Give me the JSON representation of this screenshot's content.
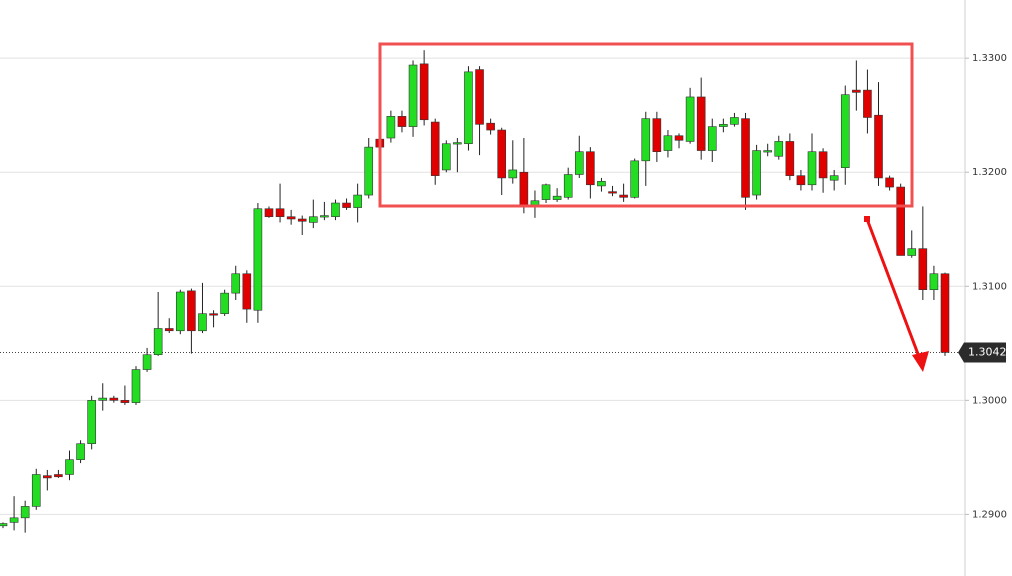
{
  "chart_data": {
    "type": "candlestick",
    "up_color": "#22dd22",
    "down_color": "#e00000",
    "grid": true,
    "ylim": [
      1.2846,
      1.3351
    ],
    "yticks": [
      {
        "value": 1.29,
        "label": "1.2900"
      },
      {
        "value": 1.3,
        "label": "1.3000"
      },
      {
        "value": 1.31,
        "label": "1.3100"
      },
      {
        "value": 1.32,
        "label": "1.3200"
      },
      {
        "value": 1.33,
        "label": "1.3300"
      }
    ],
    "current_price": {
      "value": 1.3042,
      "label": "1.3042"
    },
    "open": [
      1.289,
      1.2893,
      1.2897,
      1.2907,
      1.2934,
      1.2935,
      1.2935,
      1.2948,
      1.2962,
      1.3,
      1.3002,
      1.3,
      1.2998,
      1.3027,
      1.304,
      1.3063,
      1.3061,
      1.3096,
      1.3061,
      1.3076,
      1.3076,
      1.3094,
      1.3111,
      1.3079,
      1.3168,
      1.3168,
      1.3161,
      1.3159,
      1.3156,
      1.3161,
      1.3161,
      1.3173,
      1.3169,
      1.318,
      1.3229,
      1.323,
      1.3249,
      1.324,
      1.3295,
      1.3244,
      1.3202,
      1.3225,
      1.3225,
      1.329,
      1.3243,
      1.3237,
      1.3195,
      1.32,
      1.3171,
      1.3176,
      1.3176,
      1.3178,
      1.3198,
      1.3218,
      1.3188,
      1.3183,
      1.318,
      1.3178,
      1.321,
      1.3247,
      1.3219,
      1.3232,
      1.3227,
      1.3266,
      1.3219,
      1.324,
      1.3242,
      1.3247,
      1.318,
      1.3218,
      1.3214,
      1.3227,
      1.3197,
      1.3189,
      1.3218,
      1.3193,
      1.3204,
      1.3272,
      1.3272,
      1.325,
      1.3195,
      1.3187,
      1.3127,
      1.3133,
      1.3097,
      1.3111
    ],
    "high": [
      1.2893,
      1.2916,
      1.2912,
      1.294,
      1.2939,
      1.2939,
      1.2956,
      1.2965,
      1.3004,
      1.3015,
      1.3004,
      1.3013,
      1.303,
      1.3046,
      1.3095,
      1.3072,
      1.3097,
      1.3098,
      1.3103,
      1.3079,
      1.3097,
      1.3118,
      1.3114,
      1.3173,
      1.317,
      1.319,
      1.3167,
      1.3162,
      1.3176,
      1.3174,
      1.3176,
      1.3177,
      1.319,
      1.323,
      1.3239,
      1.3254,
      1.3254,
      1.3298,
      1.3307,
      1.3247,
      1.3228,
      1.323,
      1.3293,
      1.3293,
      1.3247,
      1.3239,
      1.3228,
      1.323,
      1.3184,
      1.319,
      1.3186,
      1.3204,
      1.3232,
      1.3222,
      1.3195,
      1.3188,
      1.319,
      1.3212,
      1.3253,
      1.3253,
      1.3237,
      1.3234,
      1.3274,
      1.3283,
      1.3247,
      1.3247,
      1.3252,
      1.3252,
      1.3224,
      1.3225,
      1.3232,
      1.3234,
      1.3202,
      1.3234,
      1.3221,
      1.3202,
      1.3276,
      1.3298,
      1.329,
      1.3279,
      1.3197,
      1.319,
      1.3149,
      1.317,
      1.3118,
      1.3112
    ],
    "low": [
      1.2888,
      1.2886,
      1.2884,
      1.2904,
      1.2921,
      1.2932,
      1.293,
      1.2945,
      1.2957,
      1.2991,
      1.2998,
      1.2996,
      1.2996,
      1.3025,
      1.3039,
      1.3059,
      1.3058,
      1.3041,
      1.3059,
      1.3064,
      1.3074,
      1.3088,
      1.3068,
      1.3068,
      1.316,
      1.3156,
      1.3154,
      1.3145,
      1.3151,
      1.3158,
      1.3158,
      1.3167,
      1.3156,
      1.3177,
      1.3219,
      1.3226,
      1.3235,
      1.3231,
      1.3241,
      1.3189,
      1.32,
      1.32,
      1.3219,
      1.3215,
      1.3233,
      1.318,
      1.319,
      1.3164,
      1.316,
      1.3173,
      1.3174,
      1.3176,
      1.3195,
      1.3177,
      1.3183,
      1.3179,
      1.3174,
      1.3177,
      1.3188,
      1.3209,
      1.3213,
      1.3221,
      1.3225,
      1.3211,
      1.3209,
      1.3235,
      1.324,
      1.3167,
      1.3176,
      1.3214,
      1.3211,
      1.3193,
      1.3184,
      1.3184,
      1.3182,
      1.3184,
      1.3189,
      1.3254,
      1.3234,
      1.3188,
      1.3184,
      1.3127,
      1.3125,
      1.3088,
      1.3088,
      1.3039
    ],
    "close": [
      1.2892,
      1.2897,
      1.2907,
      1.2935,
      1.2932,
      1.2933,
      1.2948,
      1.2962,
      1.3,
      1.3002,
      1.3,
      1.2998,
      1.3027,
      1.304,
      1.3063,
      1.3061,
      1.3095,
      1.3061,
      1.3076,
      1.3075,
      1.3094,
      1.3111,
      1.308,
      1.3168,
      1.3161,
      1.3161,
      1.3159,
      1.3157,
      1.3161,
      1.3162,
      1.3173,
      1.3169,
      1.318,
      1.3222,
      1.3222,
      1.3249,
      1.324,
      1.3294,
      1.3246,
      1.3197,
      1.3225,
      1.3226,
      1.3288,
      1.3242,
      1.3237,
      1.3195,
      1.3202,
      1.3171,
      1.3175,
      1.3189,
      1.3179,
      1.3198,
      1.3218,
      1.3189,
      1.3192,
      1.3182,
      1.3178,
      1.321,
      1.3247,
      1.3218,
      1.3232,
      1.3228,
      1.3266,
      1.3219,
      1.324,
      1.3242,
      1.3248,
      1.3178,
      1.3219,
      1.3219,
      1.3227,
      1.3197,
      1.3189,
      1.3218,
      1.3195,
      1.3197,
      1.3268,
      1.327,
      1.3248,
      1.3195,
      1.3187,
      1.3127,
      1.3133,
      1.3097,
      1.3111,
      1.3042
    ]
  }
}
